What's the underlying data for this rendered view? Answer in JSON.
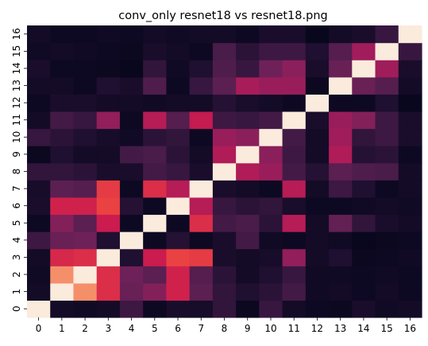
{
  "chart_data": {
    "type": "heatmap",
    "title": "conv_only resnet18 vs resnet18.png",
    "xlabel": "",
    "ylabel": "",
    "x_ticks": [
      "0",
      "1",
      "2",
      "3",
      "4",
      "5",
      "6",
      "7",
      "8",
      "9",
      "10",
      "11",
      "12",
      "13",
      "14",
      "15",
      "16"
    ],
    "y_ticks": [
      "0",
      "1",
      "2",
      "3",
      "4",
      "5",
      "6",
      "7",
      "8",
      "9",
      "10",
      "11",
      "12",
      "13",
      "14",
      "15",
      "16"
    ],
    "y_order": "bottom-to-top",
    "colormap": "rocket",
    "colorbar": false,
    "grid": false,
    "vmin": 0,
    "vmax": 1,
    "values": [
      [
        1.0,
        0.06,
        0.05,
        0.06,
        0.2,
        0.04,
        0.08,
        0.07,
        0.16,
        0.03,
        0.18,
        0.06,
        0.04,
        0.03,
        0.08,
        0.05,
        0.06
      ],
      [
        0.06,
        1.0,
        0.88,
        0.68,
        0.34,
        0.42,
        0.64,
        0.3,
        0.16,
        0.1,
        0.14,
        0.22,
        0.05,
        0.06,
        0.04,
        0.06,
        0.04
      ],
      [
        0.05,
        0.88,
        1.0,
        0.68,
        0.36,
        0.3,
        0.64,
        0.28,
        0.14,
        0.06,
        0.1,
        0.18,
        0.05,
        0.05,
        0.04,
        0.05,
        0.04
      ],
      [
        0.06,
        0.66,
        0.68,
        1.0,
        0.1,
        0.62,
        0.74,
        0.72,
        0.08,
        0.06,
        0.07,
        0.46,
        0.06,
        0.1,
        0.03,
        0.04,
        0.05
      ],
      [
        0.2,
        0.34,
        0.36,
        0.1,
        1.0,
        0.04,
        0.12,
        0.04,
        0.08,
        0.22,
        0.05,
        0.04,
        0.06,
        0.05,
        0.02,
        0.03,
        0.04
      ],
      [
        0.04,
        0.42,
        0.3,
        0.62,
        0.04,
        1.0,
        0.04,
        0.68,
        0.22,
        0.24,
        0.14,
        0.56,
        0.06,
        0.32,
        0.16,
        0.08,
        0.06
      ],
      [
        0.08,
        0.64,
        0.64,
        0.74,
        0.12,
        0.04,
        1.0,
        0.56,
        0.18,
        0.14,
        0.16,
        0.08,
        0.04,
        0.04,
        0.05,
        0.06,
        0.05
      ],
      [
        0.07,
        0.3,
        0.28,
        0.72,
        0.04,
        0.68,
        0.56,
        1.0,
        0.08,
        0.06,
        0.04,
        0.56,
        0.06,
        0.2,
        0.1,
        0.04,
        0.06
      ],
      [
        0.16,
        0.16,
        0.14,
        0.08,
        0.08,
        0.22,
        0.18,
        0.08,
        1.0,
        0.54,
        0.48,
        0.22,
        0.12,
        0.3,
        0.26,
        0.24,
        0.06
      ],
      [
        0.03,
        0.1,
        0.06,
        0.06,
        0.22,
        0.24,
        0.14,
        0.06,
        0.54,
        1.0,
        0.44,
        0.2,
        0.06,
        0.54,
        0.12,
        0.14,
        0.04
      ],
      [
        0.18,
        0.14,
        0.1,
        0.07,
        0.05,
        0.14,
        0.16,
        0.04,
        0.48,
        0.44,
        1.0,
        0.22,
        0.06,
        0.5,
        0.16,
        0.2,
        0.08
      ],
      [
        0.06,
        0.22,
        0.18,
        0.46,
        0.04,
        0.56,
        0.28,
        0.6,
        0.2,
        0.18,
        0.22,
        1.0,
        0.08,
        0.48,
        0.42,
        0.2,
        0.08
      ],
      [
        0.04,
        0.08,
        0.08,
        0.06,
        0.06,
        0.05,
        0.06,
        0.06,
        0.12,
        0.08,
        0.06,
        0.04,
        1.0,
        0.04,
        0.04,
        0.1,
        0.02
      ],
      [
        0.06,
        0.06,
        0.04,
        0.1,
        0.08,
        0.26,
        0.04,
        0.18,
        0.3,
        0.52,
        0.48,
        0.48,
        0.03,
        1.0,
        0.34,
        0.28,
        0.06
      ],
      [
        0.08,
        0.04,
        0.04,
        0.03,
        0.02,
        0.16,
        0.05,
        0.1,
        0.26,
        0.18,
        0.36,
        0.44,
        0.08,
        0.34,
        1.0,
        0.5,
        0.08
      ],
      [
        0.05,
        0.06,
        0.05,
        0.04,
        0.03,
        0.08,
        0.06,
        0.04,
        0.24,
        0.14,
        0.2,
        0.2,
        0.1,
        0.28,
        0.5,
        1.0,
        0.18
      ],
      [
        0.06,
        0.04,
        0.04,
        0.05,
        0.04,
        0.06,
        0.05,
        0.06,
        0.06,
        0.04,
        0.08,
        0.08,
        0.02,
        0.06,
        0.08,
        0.18,
        1.0
      ]
    ]
  }
}
